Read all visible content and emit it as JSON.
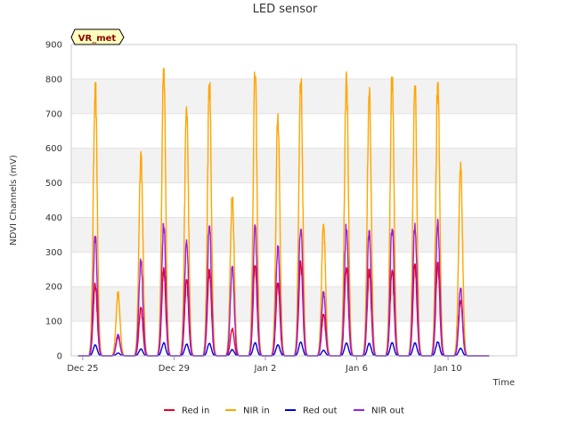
{
  "chart_data": {
    "type": "line",
    "title": "LED sensor",
    "xlabel": "Time",
    "ylabel": "NDVI Channels (mV)",
    "ylim": [
      0,
      900
    ],
    "yticks": [
      0,
      100,
      200,
      300,
      400,
      500,
      600,
      700,
      800,
      900
    ],
    "xlim": [
      -0.5,
      19.0
    ],
    "xticks": [
      {
        "value": 0,
        "label": "Dec 25"
      },
      {
        "value": 4,
        "label": "Dec 29"
      },
      {
        "value": 8,
        "label": "Jan 2"
      },
      {
        "value": 12,
        "label": "Jan 6"
      },
      {
        "value": 16,
        "label": "Jan 10"
      }
    ],
    "badge": "VR_met",
    "grid": true,
    "legend_position": "bottom",
    "day_starts": [
      0,
      1,
      2,
      3,
      4,
      5,
      6,
      7,
      8,
      9,
      10,
      11,
      12,
      13,
      14,
      15,
      16,
      17
    ],
    "series": [
      {
        "name": "Red in",
        "color": "#e8001c",
        "peaks": [
          210,
          55,
          140,
          255,
          220,
          250,
          80,
          260,
          210,
          275,
          120,
          255,
          250,
          255,
          265,
          270,
          160
        ]
      },
      {
        "name": "NIR in",
        "color": "#ffa500",
        "peaks": [
          790,
          185,
          590,
          830,
          720,
          790,
          470,
          820,
          700,
          815,
          380,
          830,
          775,
          805,
          780,
          790,
          560
        ]
      },
      {
        "name": "Red out",
        "color": "#0000dd",
        "peaks": [
          32,
          8,
          20,
          38,
          34,
          36,
          18,
          38,
          32,
          40,
          16,
          37,
          36,
          38,
          38,
          40,
          22
        ]
      },
      {
        "name": "NIR out",
        "color": "#9a1fe0",
        "peaks": [
          345,
          62,
          280,
          382,
          335,
          375,
          260,
          378,
          318,
          378,
          185,
          380,
          362,
          380,
          392,
          395,
          195
        ]
      }
    ]
  }
}
